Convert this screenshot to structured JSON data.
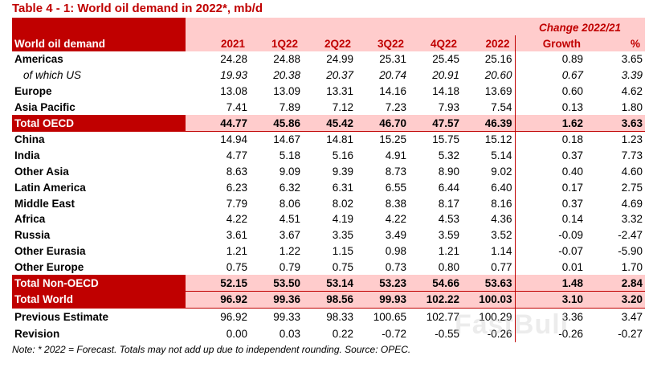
{
  "title": "Table 4 - 1: World oil demand in 2022*, mb/d",
  "header": {
    "row_label": "World oil demand",
    "change_label": "Change 2022/21",
    "columns": [
      "2021",
      "1Q22",
      "2Q22",
      "3Q22",
      "4Q22",
      "2022",
      "Growth",
      "%"
    ]
  },
  "rows": [
    {
      "label": "Americas",
      "values": [
        "24.28",
        "24.88",
        "24.99",
        "25.31",
        "25.45",
        "25.16",
        "0.89",
        "3.65"
      ]
    },
    {
      "label": "of which US",
      "values": [
        "19.93",
        "20.38",
        "20.37",
        "20.74",
        "20.91",
        "20.60",
        "0.67",
        "3.39"
      ]
    },
    {
      "label": "Europe",
      "values": [
        "13.08",
        "13.09",
        "13.31",
        "14.16",
        "14.18",
        "13.69",
        "0.60",
        "4.62"
      ]
    },
    {
      "label": "Asia Pacific",
      "values": [
        "7.41",
        "7.89",
        "7.12",
        "7.23",
        "7.93",
        "7.54",
        "0.13",
        "1.80"
      ]
    },
    {
      "label": "Total OECD",
      "values": [
        "44.77",
        "45.86",
        "45.42",
        "46.70",
        "47.57",
        "46.39",
        "1.62",
        "3.63"
      ]
    },
    {
      "label": "China",
      "values": [
        "14.94",
        "14.67",
        "14.81",
        "15.25",
        "15.75",
        "15.12",
        "0.18",
        "1.23"
      ]
    },
    {
      "label": "India",
      "values": [
        "4.77",
        "5.18",
        "5.16",
        "4.91",
        "5.32",
        "5.14",
        "0.37",
        "7.73"
      ]
    },
    {
      "label": "Other Asia",
      "values": [
        "8.63",
        "9.09",
        "9.39",
        "8.73",
        "8.90",
        "9.02",
        "0.40",
        "4.60"
      ]
    },
    {
      "label": "Latin America",
      "values": [
        "6.23",
        "6.32",
        "6.31",
        "6.55",
        "6.44",
        "6.40",
        "0.17",
        "2.75"
      ]
    },
    {
      "label": "Middle East",
      "values": [
        "7.79",
        "8.06",
        "8.02",
        "8.38",
        "8.17",
        "8.16",
        "0.37",
        "4.69"
      ]
    },
    {
      "label": "Africa",
      "values": [
        "4.22",
        "4.51",
        "4.19",
        "4.22",
        "4.53",
        "4.36",
        "0.14",
        "3.32"
      ]
    },
    {
      "label": "Russia",
      "values": [
        "3.61",
        "3.67",
        "3.35",
        "3.49",
        "3.59",
        "3.52",
        "-0.09",
        "-2.47"
      ]
    },
    {
      "label": "Other Eurasia",
      "values": [
        "1.21",
        "1.22",
        "1.15",
        "0.98",
        "1.21",
        "1.14",
        "-0.07",
        "-5.90"
      ]
    },
    {
      "label": "Other Europe",
      "values": [
        "0.75",
        "0.79",
        "0.75",
        "0.73",
        "0.80",
        "0.77",
        "0.01",
        "1.70"
      ]
    },
    {
      "label": "Total Non-OECD",
      "values": [
        "52.15",
        "53.50",
        "53.14",
        "53.23",
        "54.66",
        "53.63",
        "1.48",
        "2.84"
      ]
    },
    {
      "label": "Total World",
      "values": [
        "96.92",
        "99.36",
        "98.56",
        "99.93",
        "102.22",
        "100.03",
        "3.10",
        "3.20"
      ]
    },
    {
      "label": "Previous Estimate",
      "values": [
        "96.92",
        "99.33",
        "98.33",
        "100.65",
        "102.77",
        "100.29",
        "3.36",
        "3.47"
      ]
    },
    {
      "label": "Revision",
      "values": [
        "0.00",
        "0.03",
        "0.22",
        "-0.72",
        "-0.55",
        "-0.26",
        "-0.26",
        "-0.27"
      ]
    }
  ],
  "note": "Note: * 2022 = Forecast. Totals may not add up due to independent rounding. Source: OPEC.",
  "watermark": "FastBull",
  "colors": {
    "accent": "#c00000",
    "highlight": "#ffcccc"
  }
}
